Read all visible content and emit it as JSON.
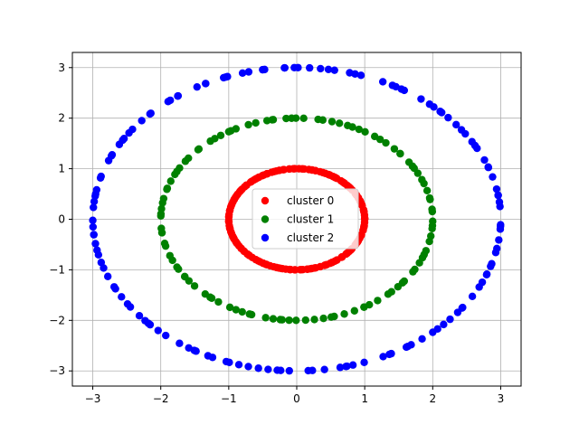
{
  "chart_data": {
    "type": "scatter",
    "title": "",
    "xlabel": "",
    "ylabel": "",
    "xlim": [
      -3.3,
      3.3
    ],
    "ylim": [
      -3.3,
      3.3
    ],
    "xticks": [
      -3,
      -2,
      -1,
      0,
      1,
      2,
      3
    ],
    "yticks": [
      -3,
      -2,
      -1,
      0,
      1,
      2,
      3
    ],
    "grid": true,
    "legend_position": "center",
    "series": [
      {
        "name": "cluster 0",
        "color": "#ff0000",
        "radius": 1,
        "count": 180
      },
      {
        "name": "cluster 1",
        "color": "#008000",
        "radius": 2,
        "count": 110
      },
      {
        "name": "cluster 2",
        "color": "#0000ff",
        "radius": 3,
        "count": 140
      }
    ]
  }
}
